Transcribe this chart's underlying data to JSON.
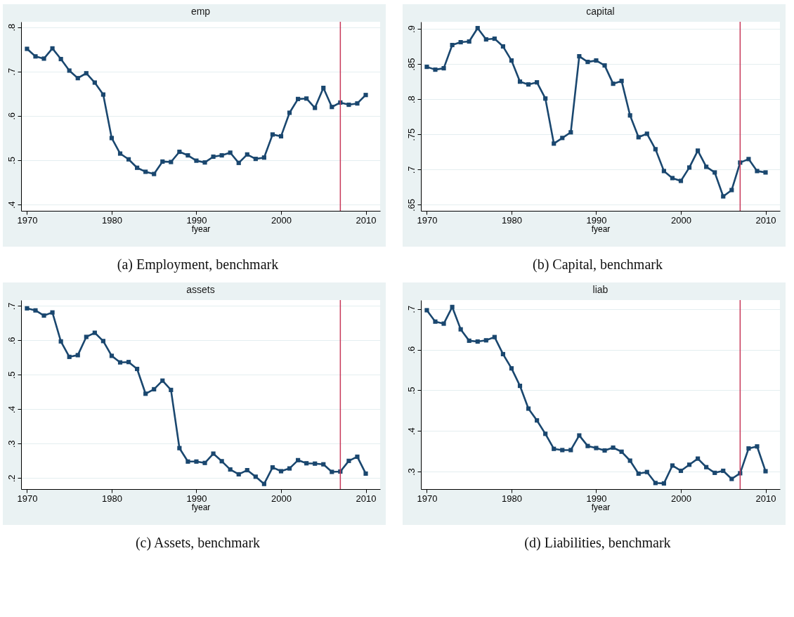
{
  "chart_data": [
    {
      "type": "line",
      "title": "emp",
      "xlabel": "fyear",
      "annotations": [
        "(a) Employment, benchmark"
      ],
      "grid": "y",
      "marker": "square",
      "line_style": "solid",
      "x": [
        1970,
        1971,
        1972,
        1973,
        1974,
        1975,
        1976,
        1977,
        1978,
        1979,
        1980,
        1981,
        1982,
        1983,
        1984,
        1985,
        1986,
        1987,
        1988,
        1989,
        1990,
        1991,
        1992,
        1993,
        1994,
        1995,
        1996,
        1997,
        1998,
        1999,
        2000,
        2001,
        2002,
        2003,
        2004,
        2005,
        2006,
        2007,
        2008,
        2009,
        2010
      ],
      "series": [
        {
          "color": "#1a476f",
          "values": [
            0.751,
            0.734,
            0.729,
            0.752,
            0.728,
            0.702,
            0.685,
            0.696,
            0.675,
            0.648,
            0.55,
            0.515,
            0.502,
            0.483,
            0.474,
            0.469,
            0.497,
            0.496,
            0.519,
            0.511,
            0.499,
            0.495,
            0.508,
            0.511,
            0.517,
            0.494,
            0.513,
            0.503,
            0.506,
            0.558,
            0.554,
            0.607,
            0.638,
            0.639,
            0.618,
            0.663,
            0.62,
            0.63,
            0.625,
            0.628,
            0.647
          ]
        }
      ],
      "xlim": [
        1969.3,
        2011.7
      ],
      "xticks": [
        1970,
        1980,
        1990,
        2000,
        2010
      ],
      "ylim": [
        0.386,
        0.812
      ],
      "yticks": [
        {
          "value": 0.4,
          "label": ".4"
        },
        {
          "value": 0.5,
          "label": ".5"
        },
        {
          "value": 0.6,
          "label": ".6"
        },
        {
          "value": 0.7,
          "label": ".7"
        },
        {
          "value": 0.8,
          "label": ".8"
        }
      ],
      "ref_lines": [
        {
          "axis": "x",
          "value": 2007,
          "color": "#c8385a"
        }
      ]
    },
    {
      "type": "line",
      "title": "capital",
      "xlabel": "fyear",
      "annotations": [
        "(b) Capital, benchmark"
      ],
      "grid": "y",
      "marker": "square",
      "line_style": "solid",
      "x": [
        1970,
        1971,
        1972,
        1973,
        1974,
        1975,
        1976,
        1977,
        1978,
        1979,
        1980,
        1981,
        1982,
        1983,
        1984,
        1985,
        1986,
        1987,
        1988,
        1989,
        1990,
        1991,
        1992,
        1993,
        1994,
        1995,
        1996,
        1997,
        1998,
        1999,
        2000,
        2001,
        2002,
        2003,
        2004,
        2005,
        2006,
        2007,
        2008,
        2009,
        2010
      ],
      "series": [
        {
          "color": "#1a476f",
          "values": [
            0.846,
            0.842,
            0.844,
            0.877,
            0.881,
            0.882,
            0.901,
            0.885,
            0.886,
            0.875,
            0.855,
            0.825,
            0.821,
            0.824,
            0.801,
            0.737,
            0.745,
            0.753,
            0.861,
            0.853,
            0.855,
            0.848,
            0.822,
            0.826,
            0.777,
            0.746,
            0.751,
            0.729,
            0.698,
            0.688,
            0.684,
            0.703,
            0.727,
            0.704,
            0.696,
            0.662,
            0.671,
            0.71,
            0.715,
            0.698,
            0.696
          ]
        }
      ],
      "xlim": [
        1969.3,
        2011.7
      ],
      "xticks": [
        1970,
        1980,
        1990,
        2000,
        2010
      ],
      "ylim": [
        0.6415,
        0.91
      ],
      "yticks": [
        {
          "value": 0.65,
          "label": ".65"
        },
        {
          "value": 0.7,
          "label": ".7"
        },
        {
          "value": 0.75,
          "label": ".75"
        },
        {
          "value": 0.8,
          "label": ".8"
        },
        {
          "value": 0.85,
          "label": ".85"
        },
        {
          "value": 0.9,
          "label": ".9"
        }
      ],
      "ref_lines": [
        {
          "axis": "x",
          "value": 2007,
          "color": "#c8385a"
        }
      ]
    },
    {
      "type": "line",
      "title": "assets",
      "xlabel": "fyear",
      "annotations": [
        "(c) Assets, benchmark"
      ],
      "grid": "y",
      "marker": "square",
      "line_style": "solid",
      "x": [
        1970,
        1971,
        1972,
        1973,
        1974,
        1975,
        1976,
        1977,
        1978,
        1979,
        1980,
        1981,
        1982,
        1983,
        1984,
        1985,
        1986,
        1987,
        1988,
        1989,
        1990,
        1991,
        1992,
        1993,
        1994,
        1995,
        1996,
        1997,
        1998,
        1999,
        2000,
        2001,
        2002,
        2003,
        2004,
        2005,
        2006,
        2007,
        2008,
        2009,
        2010
      ],
      "series": [
        {
          "color": "#1a476f",
          "values": [
            0.693,
            0.687,
            0.672,
            0.681,
            0.597,
            0.552,
            0.557,
            0.61,
            0.622,
            0.598,
            0.555,
            0.536,
            0.537,
            0.517,
            0.445,
            0.458,
            0.483,
            0.456,
            0.287,
            0.248,
            0.248,
            0.244,
            0.271,
            0.249,
            0.225,
            0.211,
            0.223,
            0.204,
            0.183,
            0.231,
            0.22,
            0.228,
            0.252,
            0.243,
            0.242,
            0.24,
            0.218,
            0.219,
            0.25,
            0.262,
            0.213
          ]
        }
      ],
      "xlim": [
        1969.3,
        2011.7
      ],
      "xticks": [
        1970,
        1980,
        1990,
        2000,
        2010
      ],
      "ylim": [
        0.168,
        0.717
      ],
      "yticks": [
        {
          "value": 0.2,
          "label": ".2"
        },
        {
          "value": 0.3,
          "label": ".3"
        },
        {
          "value": 0.4,
          "label": ".4"
        },
        {
          "value": 0.5,
          "label": ".5"
        },
        {
          "value": 0.6,
          "label": ".6"
        },
        {
          "value": 0.7,
          "label": ".7"
        }
      ],
      "ref_lines": [
        {
          "axis": "x",
          "value": 2007,
          "color": "#c8385a"
        }
      ]
    },
    {
      "type": "line",
      "title": "liab",
      "xlabel": "fyear",
      "annotations": [
        "(d) Liabilities, benchmark"
      ],
      "grid": "y",
      "marker": "square",
      "line_style": "solid",
      "x": [
        1970,
        1971,
        1972,
        1973,
        1974,
        1975,
        1976,
        1977,
        1978,
        1979,
        1980,
        1981,
        1982,
        1983,
        1984,
        1985,
        1986,
        1987,
        1988,
        1989,
        1990,
        1991,
        1992,
        1993,
        1994,
        1995,
        1996,
        1997,
        1998,
        1999,
        2000,
        2001,
        2002,
        2003,
        2004,
        2005,
        2006,
        2007,
        2008,
        2009,
        2010
      ],
      "series": [
        {
          "color": "#1a476f",
          "values": [
            0.697,
            0.669,
            0.664,
            0.705,
            0.65,
            0.622,
            0.62,
            0.623,
            0.631,
            0.589,
            0.554,
            0.511,
            0.455,
            0.426,
            0.393,
            0.356,
            0.353,
            0.353,
            0.389,
            0.363,
            0.358,
            0.352,
            0.359,
            0.349,
            0.327,
            0.295,
            0.299,
            0.272,
            0.271,
            0.315,
            0.302,
            0.317,
            0.332,
            0.311,
            0.297,
            0.302,
            0.282,
            0.296,
            0.357,
            0.362,
            0.301
          ]
        }
      ],
      "xlim": [
        1969.3,
        2011.7
      ],
      "xticks": [
        1970,
        1980,
        1990,
        2000,
        2010
      ],
      "ylim": [
        0.257,
        0.722
      ],
      "yticks": [
        {
          "value": 0.3,
          "label": ".3"
        },
        {
          "value": 0.4,
          "label": ".4"
        },
        {
          "value": 0.5,
          "label": ".5"
        },
        {
          "value": 0.6,
          "label": ".6"
        },
        {
          "value": 0.7,
          "label": ".7"
        }
      ],
      "ref_lines": [
        {
          "axis": "x",
          "value": 2007,
          "color": "#c8385a"
        }
      ]
    }
  ]
}
